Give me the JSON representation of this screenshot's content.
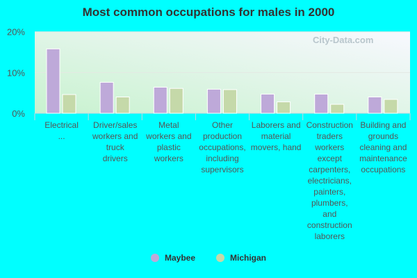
{
  "chart_data": {
    "type": "bar",
    "title": "Most common occupations for males in 2000",
    "categories": [
      "Electrical ...",
      "Driver/sales workers and truck drivers",
      "Metal workers and plastic workers",
      "Other production occupations, including supervisors",
      "Laborers and material movers, hand",
      "Construction traders workers except carpenters, electricians, painters, plumbers, and construction laborers",
      "Building and grounds cleaning and maintenance occupations"
    ],
    "series": [
      {
        "name": "Maybee",
        "color": "#bea9d9",
        "values": [
          15.8,
          7.6,
          6.4,
          5.9,
          4.7,
          4.7,
          4.0
        ]
      },
      {
        "name": "Michigan",
        "color": "#c5d9a9",
        "values": [
          4.6,
          4.0,
          6.1,
          5.8,
          2.8,
          2.2,
          3.4
        ]
      }
    ],
    "yticks": [
      "0%",
      "10%",
      "20%"
    ],
    "ylim": [
      0,
      20
    ],
    "grid": true,
    "legend": "bottom",
    "watermark": "City-Data.com"
  }
}
